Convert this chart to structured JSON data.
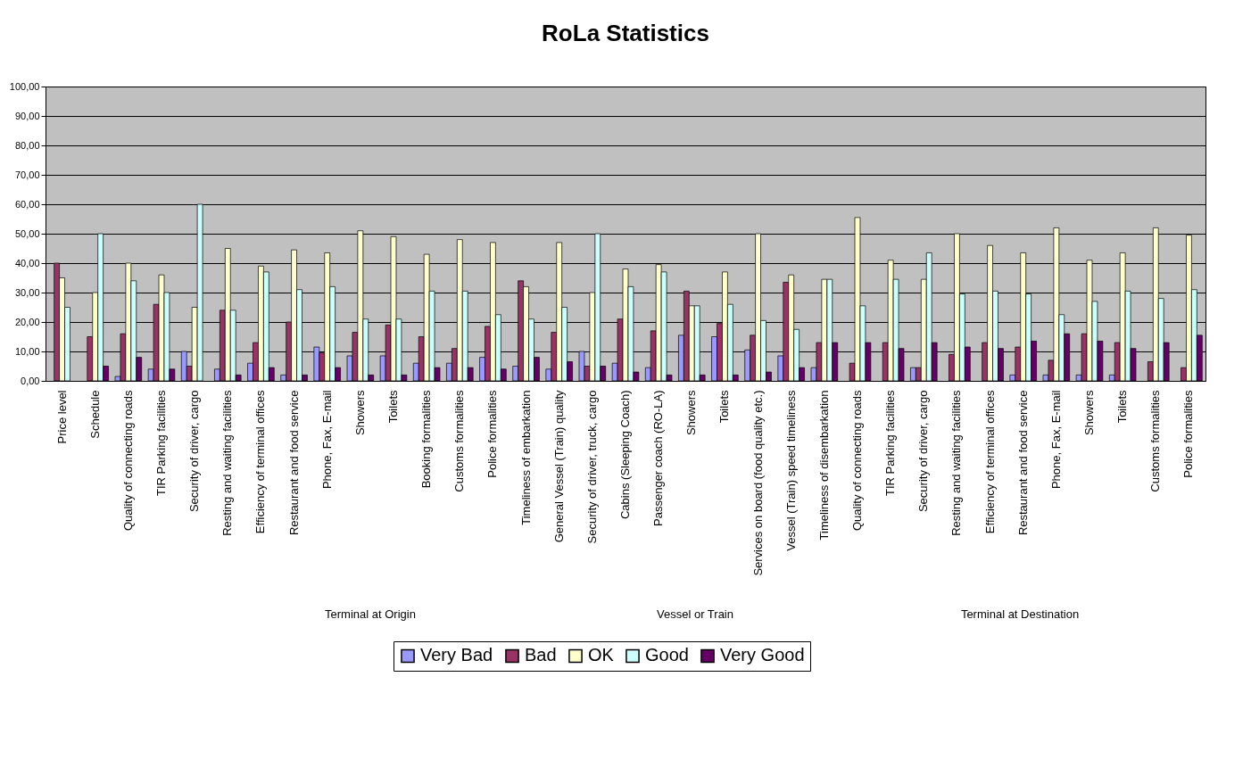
{
  "chart_data": {
    "type": "bar",
    "title": "RoLa Statistics",
    "categories": [
      "Price level",
      "Schedule",
      "Quality of connecting roads",
      "TIR Parking facilities",
      "Security of driver, cargo",
      "Resting and waiting facilities",
      "Efficiency of terminal offices",
      "Restaurant and food service",
      "Phone, Fax, E-mail",
      "Showers",
      "Toilets",
      "Booking formalities",
      "Customs formalities",
      "Police formalities",
      "Timeliness of embarkation",
      "General Vessel (Train) quality",
      "Security of driver, truck, cargo",
      "Cabins (Sleeping Coach)",
      "Passenger coach (RO-LA)",
      "Showers",
      "Toilets",
      "Services on board (food quality etc.)",
      "Vessel (Train) speed timeliness",
      "Timeliness of disembarkation",
      "Quality of connecting roads",
      "TIR Parking facilities",
      "Security of driver, cargo",
      "Resting and waiting facilities",
      "Efficiency of terminal offices",
      "Restaurant and food service",
      "Phone, Fax, E-mail",
      "Showers",
      "Toilets",
      "Customs formalities",
      "Police formalities"
    ],
    "series": [
      {
        "name": "Very Bad",
        "color": "#9999ff",
        "values": [
          0,
          0,
          1.5,
          4,
          10,
          4,
          6,
          2,
          11.5,
          8.5,
          8.5,
          6,
          6,
          8,
          5,
          4,
          10,
          6,
          4.5,
          15.5,
          15,
          10.5,
          8.5,
          4.5,
          0,
          0,
          4.5,
          0,
          0,
          2,
          2,
          2,
          2,
          0,
          0
        ]
      },
      {
        "name": "Bad",
        "color": "#993366",
        "values": [
          40,
          15,
          16,
          26,
          5,
          24,
          13,
          20,
          9.5,
          16.5,
          19,
          15,
          11,
          18.5,
          34,
          16.5,
          5,
          21,
          17,
          30.5,
          19.5,
          15.5,
          33.5,
          13,
          6,
          13,
          4.5,
          9,
          13,
          11.5,
          7,
          16,
          13,
          6.5,
          4.5
        ]
      },
      {
        "name": "OK",
        "color": "#ffffcc",
        "values": [
          35,
          30,
          40,
          36,
          25,
          45,
          39,
          44.5,
          43.5,
          51,
          49,
          43,
          48,
          47,
          32,
          47,
          30,
          38,
          39.5,
          25.5,
          37,
          50,
          36,
          34.5,
          55.5,
          41,
          34.5,
          50,
          46,
          43.5,
          52,
          41,
          43.5,
          52,
          49.5
        ]
      },
      {
        "name": "Good",
        "color": "#ccffff",
        "values": [
          25,
          50,
          34,
          30,
          60,
          24,
          37,
          31,
          32,
          21,
          21,
          30.5,
          30.5,
          22.5,
          21,
          25,
          50,
          32,
          37,
          25.5,
          26,
          20.5,
          17.5,
          34.5,
          25.5,
          34.5,
          43.5,
          29.5,
          30.5,
          29.5,
          22.5,
          27,
          30.5,
          28,
          31
        ]
      },
      {
        "name": "Very Good",
        "color": "#660066",
        "values": [
          0,
          5,
          8,
          4,
          0,
          2,
          4.5,
          2,
          4.5,
          2,
          2,
          4.5,
          4.5,
          4,
          8,
          6.5,
          5,
          3,
          2,
          2,
          2,
          3,
          4.5,
          13,
          13,
          11,
          13,
          11.5,
          11,
          13.5,
          16,
          13.5,
          11,
          13,
          15.5
        ]
      }
    ],
    "ylim": [
      0,
      100
    ],
    "yticks": [
      {
        "value": 0,
        "label": "0,00"
      },
      {
        "value": 10,
        "label": "10,00"
      },
      {
        "value": 20,
        "label": "20,00"
      },
      {
        "value": 30,
        "label": "30,00"
      },
      {
        "value": 40,
        "label": "40,00"
      },
      {
        "value": 50,
        "label": "50,00"
      },
      {
        "value": 60,
        "label": "60,00"
      },
      {
        "value": 70,
        "label": "70,00"
      },
      {
        "value": 80,
        "label": "80,00"
      },
      {
        "value": 90,
        "label": "90,00"
      },
      {
        "value": 100,
        "label": "100,00"
      }
    ],
    "annotations": [
      "Terminal at Origin",
      "Vessel or Train",
      "Terminal at Destination"
    ],
    "grid": "y",
    "legend": "bottom"
  }
}
